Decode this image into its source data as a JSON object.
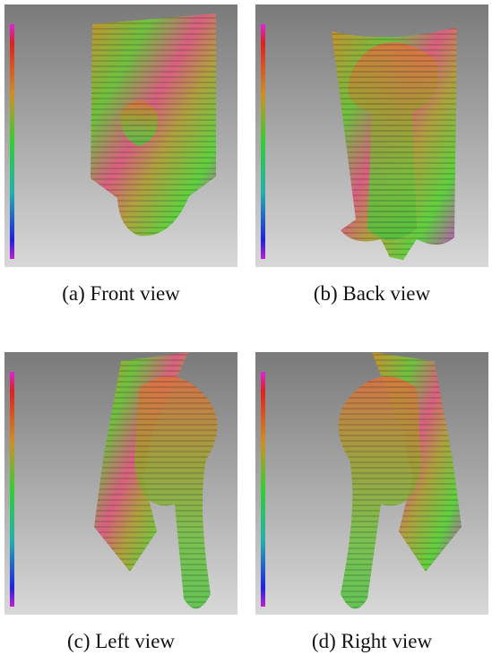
{
  "panels": [
    {
      "caption": "(a) Front view"
    },
    {
      "caption": "(b) Back view"
    },
    {
      "caption": "(c) Left view"
    },
    {
      "caption": "(d) Right view"
    }
  ]
}
